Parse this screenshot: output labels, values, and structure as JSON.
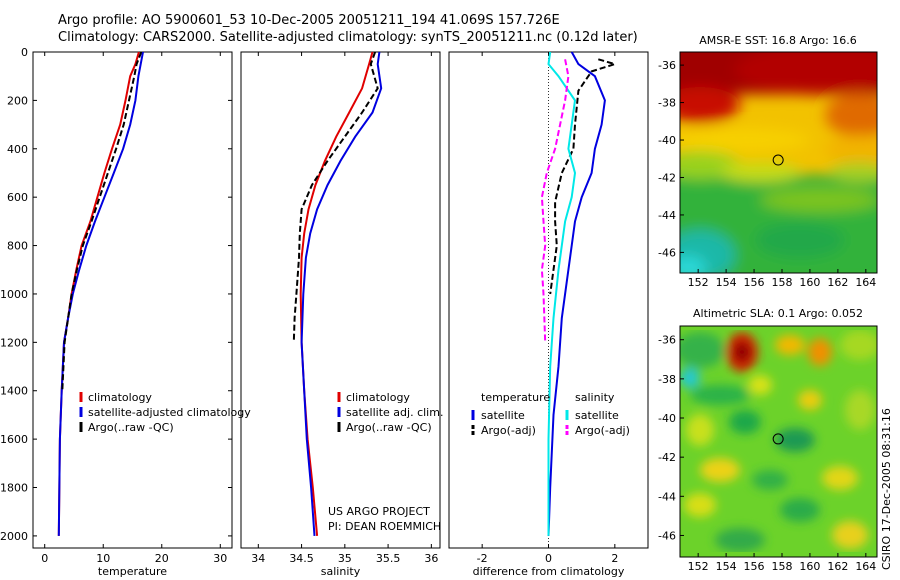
{
  "header": {
    "line1": "Argo profile: AO 5900601_53 10-Dec-2005 20051211_194 41.069S 157.726E",
    "line2": "Climatology: CARS2000. Satellite-adjusted climatology: synTS_20051211.nc (0.12d later)"
  },
  "stamp": "CSIRO 17-Dec-2005 08:31:16",
  "colors": {
    "red": "#e00000",
    "blue": "#0000e0",
    "black": "#000000",
    "cyan": "#00e8e8",
    "magenta": "#ff00ff"
  },
  "chart_data": [
    {
      "type": "line",
      "xlabel": "temperature",
      "xlim": [
        -2,
        32
      ],
      "xticks": [
        0,
        10,
        20,
        30
      ],
      "ylim": [
        2050,
        0
      ],
      "yticks": [
        0,
        200,
        400,
        600,
        800,
        1000,
        1200,
        1400,
        1600,
        1800,
        2000
      ],
      "series": [
        {
          "name": "climatology",
          "color": "red",
          "dash": false,
          "x": [
            16.1,
            15.5,
            14.6,
            13.8,
            12.9,
            11.5,
            10.2,
            9.0,
            7.8,
            6.3,
            5.4,
            4.6,
            4.0,
            3.3,
            2.9,
            2.6,
            2.4
          ],
          "y": [
            0,
            50,
            100,
            200,
            300,
            400,
            500,
            600,
            700,
            800,
            900,
            1000,
            1100,
            1200,
            1400,
            1600,
            2000
          ]
        },
        {
          "name": "satellite-adjusted climatology",
          "color": "blue",
          "dash": false,
          "x": [
            16.8,
            16.4,
            16.0,
            15.5,
            14.6,
            13.4,
            11.8,
            10.2,
            8.6,
            7.1,
            5.9,
            4.8,
            4.0,
            3.3,
            2.9,
            2.6,
            2.4
          ],
          "y": [
            0,
            50,
            100,
            200,
            300,
            400,
            500,
            600,
            700,
            800,
            900,
            1000,
            1100,
            1200,
            1400,
            1600,
            2000
          ]
        },
        {
          "name": "Argo(..raw -QC)",
          "color": "black",
          "dash": true,
          "x": [
            16.5,
            15.7,
            15.3,
            14.4,
            13.5,
            12.2,
            10.8,
            9.4,
            8.0,
            6.5,
            5.5,
            4.6,
            4.0,
            3.4,
            3.0
          ],
          "y": [
            0,
            50,
            100,
            200,
            300,
            400,
            500,
            600,
            700,
            800,
            900,
            1000,
            1100,
            1200,
            1400
          ]
        }
      ],
      "legend": [
        "climatology",
        "satellite-adjusted climatology",
        "Argo(..raw -QC)"
      ]
    },
    {
      "type": "line",
      "xlabel": "salinity",
      "xlim": [
        33.8,
        36.1
      ],
      "xticks": [
        34,
        34.5,
        35,
        35.5,
        36
      ],
      "ylim": [
        2050,
        0
      ],
      "yticks": [],
      "series": [
        {
          "name": "climatology",
          "color": "red",
          "dash": false,
          "x": [
            35.32,
            35.28,
            35.2,
            35.05,
            34.9,
            34.77,
            34.66,
            34.58,
            34.53,
            34.5,
            34.49,
            34.5,
            34.53,
            34.57,
            34.63,
            34.68
          ],
          "y": [
            0,
            50,
            150,
            250,
            350,
            450,
            550,
            650,
            750,
            850,
            1000,
            1200,
            1400,
            1600,
            1800,
            2000
          ]
        },
        {
          "name": "satellite adj. clim.",
          "color": "blue",
          "dash": false,
          "x": [
            35.4,
            35.38,
            35.42,
            35.32,
            35.12,
            34.95,
            34.8,
            34.68,
            34.6,
            34.55,
            34.52,
            34.5,
            34.53,
            34.56,
            34.61,
            34.65
          ],
          "y": [
            0,
            50,
            150,
            250,
            350,
            450,
            550,
            650,
            750,
            850,
            1000,
            1200,
            1400,
            1600,
            1800,
            2000
          ]
        },
        {
          "name": "Argo(..raw -QC)",
          "color": "black",
          "dash": true,
          "x": [
            35.35,
            35.3,
            35.38,
            35.2,
            35.0,
            34.8,
            34.62,
            34.5,
            34.48,
            34.47,
            34.44,
            34.42,
            34.41
          ],
          "y": [
            0,
            50,
            150,
            250,
            350,
            450,
            550,
            650,
            750,
            850,
            1000,
            1100,
            1200
          ]
        }
      ],
      "legend": [
        "climatology",
        "satellite adj. clim.",
        "Argo(..raw -QC)"
      ],
      "annotation": [
        "US ARGO PROJECT",
        "PI: DEAN ROEMMICH"
      ]
    },
    {
      "type": "line",
      "xlabel": "difference from climatology",
      "xlim": [
        -3,
        3
      ],
      "xticks": [
        -2,
        0,
        2
      ],
      "ylim": [
        2050,
        0
      ],
      "yticks": [],
      "series": [
        {
          "name": "satellite (temperature)",
          "color": "blue",
          "dash": false,
          "x": [
            0.7,
            0.9,
            1.4,
            1.7,
            1.6,
            1.4,
            1.3,
            1.0,
            0.8,
            0.7,
            0.6,
            0.4,
            0.3,
            0.15,
            0.05,
            0.0
          ],
          "y": [
            0,
            50,
            100,
            200,
            300,
            400,
            500,
            600,
            700,
            800,
            900,
            1100,
            1300,
            1500,
            1800,
            2000
          ]
        },
        {
          "name": "Argo(-adj) (temperature)",
          "color": "black",
          "dash": true,
          "x": [
            1.5,
            2.0,
            1.3,
            0.9,
            0.8,
            0.75,
            0.4,
            0.2,
            0.2,
            0.25,
            0.15,
            0.05
          ],
          "y": [
            30,
            50,
            80,
            160,
            300,
            400,
            500,
            620,
            700,
            800,
            900,
            1000
          ]
        },
        {
          "name": "satellite (salinity)",
          "color": "cyan",
          "dash": false,
          "x": [
            0.05,
            0.0,
            0.3,
            0.8,
            0.7,
            0.6,
            0.8,
            0.7,
            0.5,
            0.4,
            0.3,
            0.15,
            0.05,
            0.0,
            0.0
          ],
          "y": [
            0,
            50,
            100,
            200,
            300,
            400,
            500,
            600,
            700,
            800,
            900,
            1100,
            1300,
            1600,
            2000
          ]
        },
        {
          "name": "Argo(-adj) (salinity)",
          "color": "magenta",
          "dash": true,
          "x": [
            0.5,
            0.6,
            0.5,
            0.35,
            0.2,
            -0.05,
            -0.2,
            -0.15,
            -0.1,
            -0.2,
            -0.15,
            -0.1
          ],
          "y": [
            30,
            100,
            200,
            300,
            400,
            500,
            600,
            700,
            800,
            900,
            1000,
            1200
          ]
        }
      ],
      "legend_groups": [
        {
          "title": "temperature",
          "items": [
            "satellite",
            "Argo(-adj)"
          ]
        },
        {
          "title": "salinity",
          "items": [
            "satellite",
            "Argo(-adj)"
          ]
        }
      ]
    },
    {
      "type": "heatmap",
      "title": "AMSR-E SST: 16.8 Argo: 16.6",
      "xlim": [
        150.7,
        164.8
      ],
      "ylim": [
        -47.1,
        -35.3
      ],
      "xticks": [
        152,
        154,
        156,
        158,
        160,
        162,
        164
      ],
      "yticks": [
        -36,
        -38,
        -40,
        -42,
        -44,
        -46
      ],
      "marker": {
        "lon": 157.726,
        "lat": -41.069
      }
    },
    {
      "type": "heatmap",
      "title": "Altimetric SLA: 0.1 Argo: 0.052",
      "xlim": [
        150.7,
        164.8
      ],
      "ylim": [
        -47.1,
        -35.3
      ],
      "xticks": [
        152,
        154,
        156,
        158,
        160,
        162,
        164
      ],
      "yticks": [
        -36,
        -38,
        -40,
        -42,
        -44,
        -46
      ],
      "marker": {
        "lon": 157.726,
        "lat": -41.069
      }
    }
  ]
}
